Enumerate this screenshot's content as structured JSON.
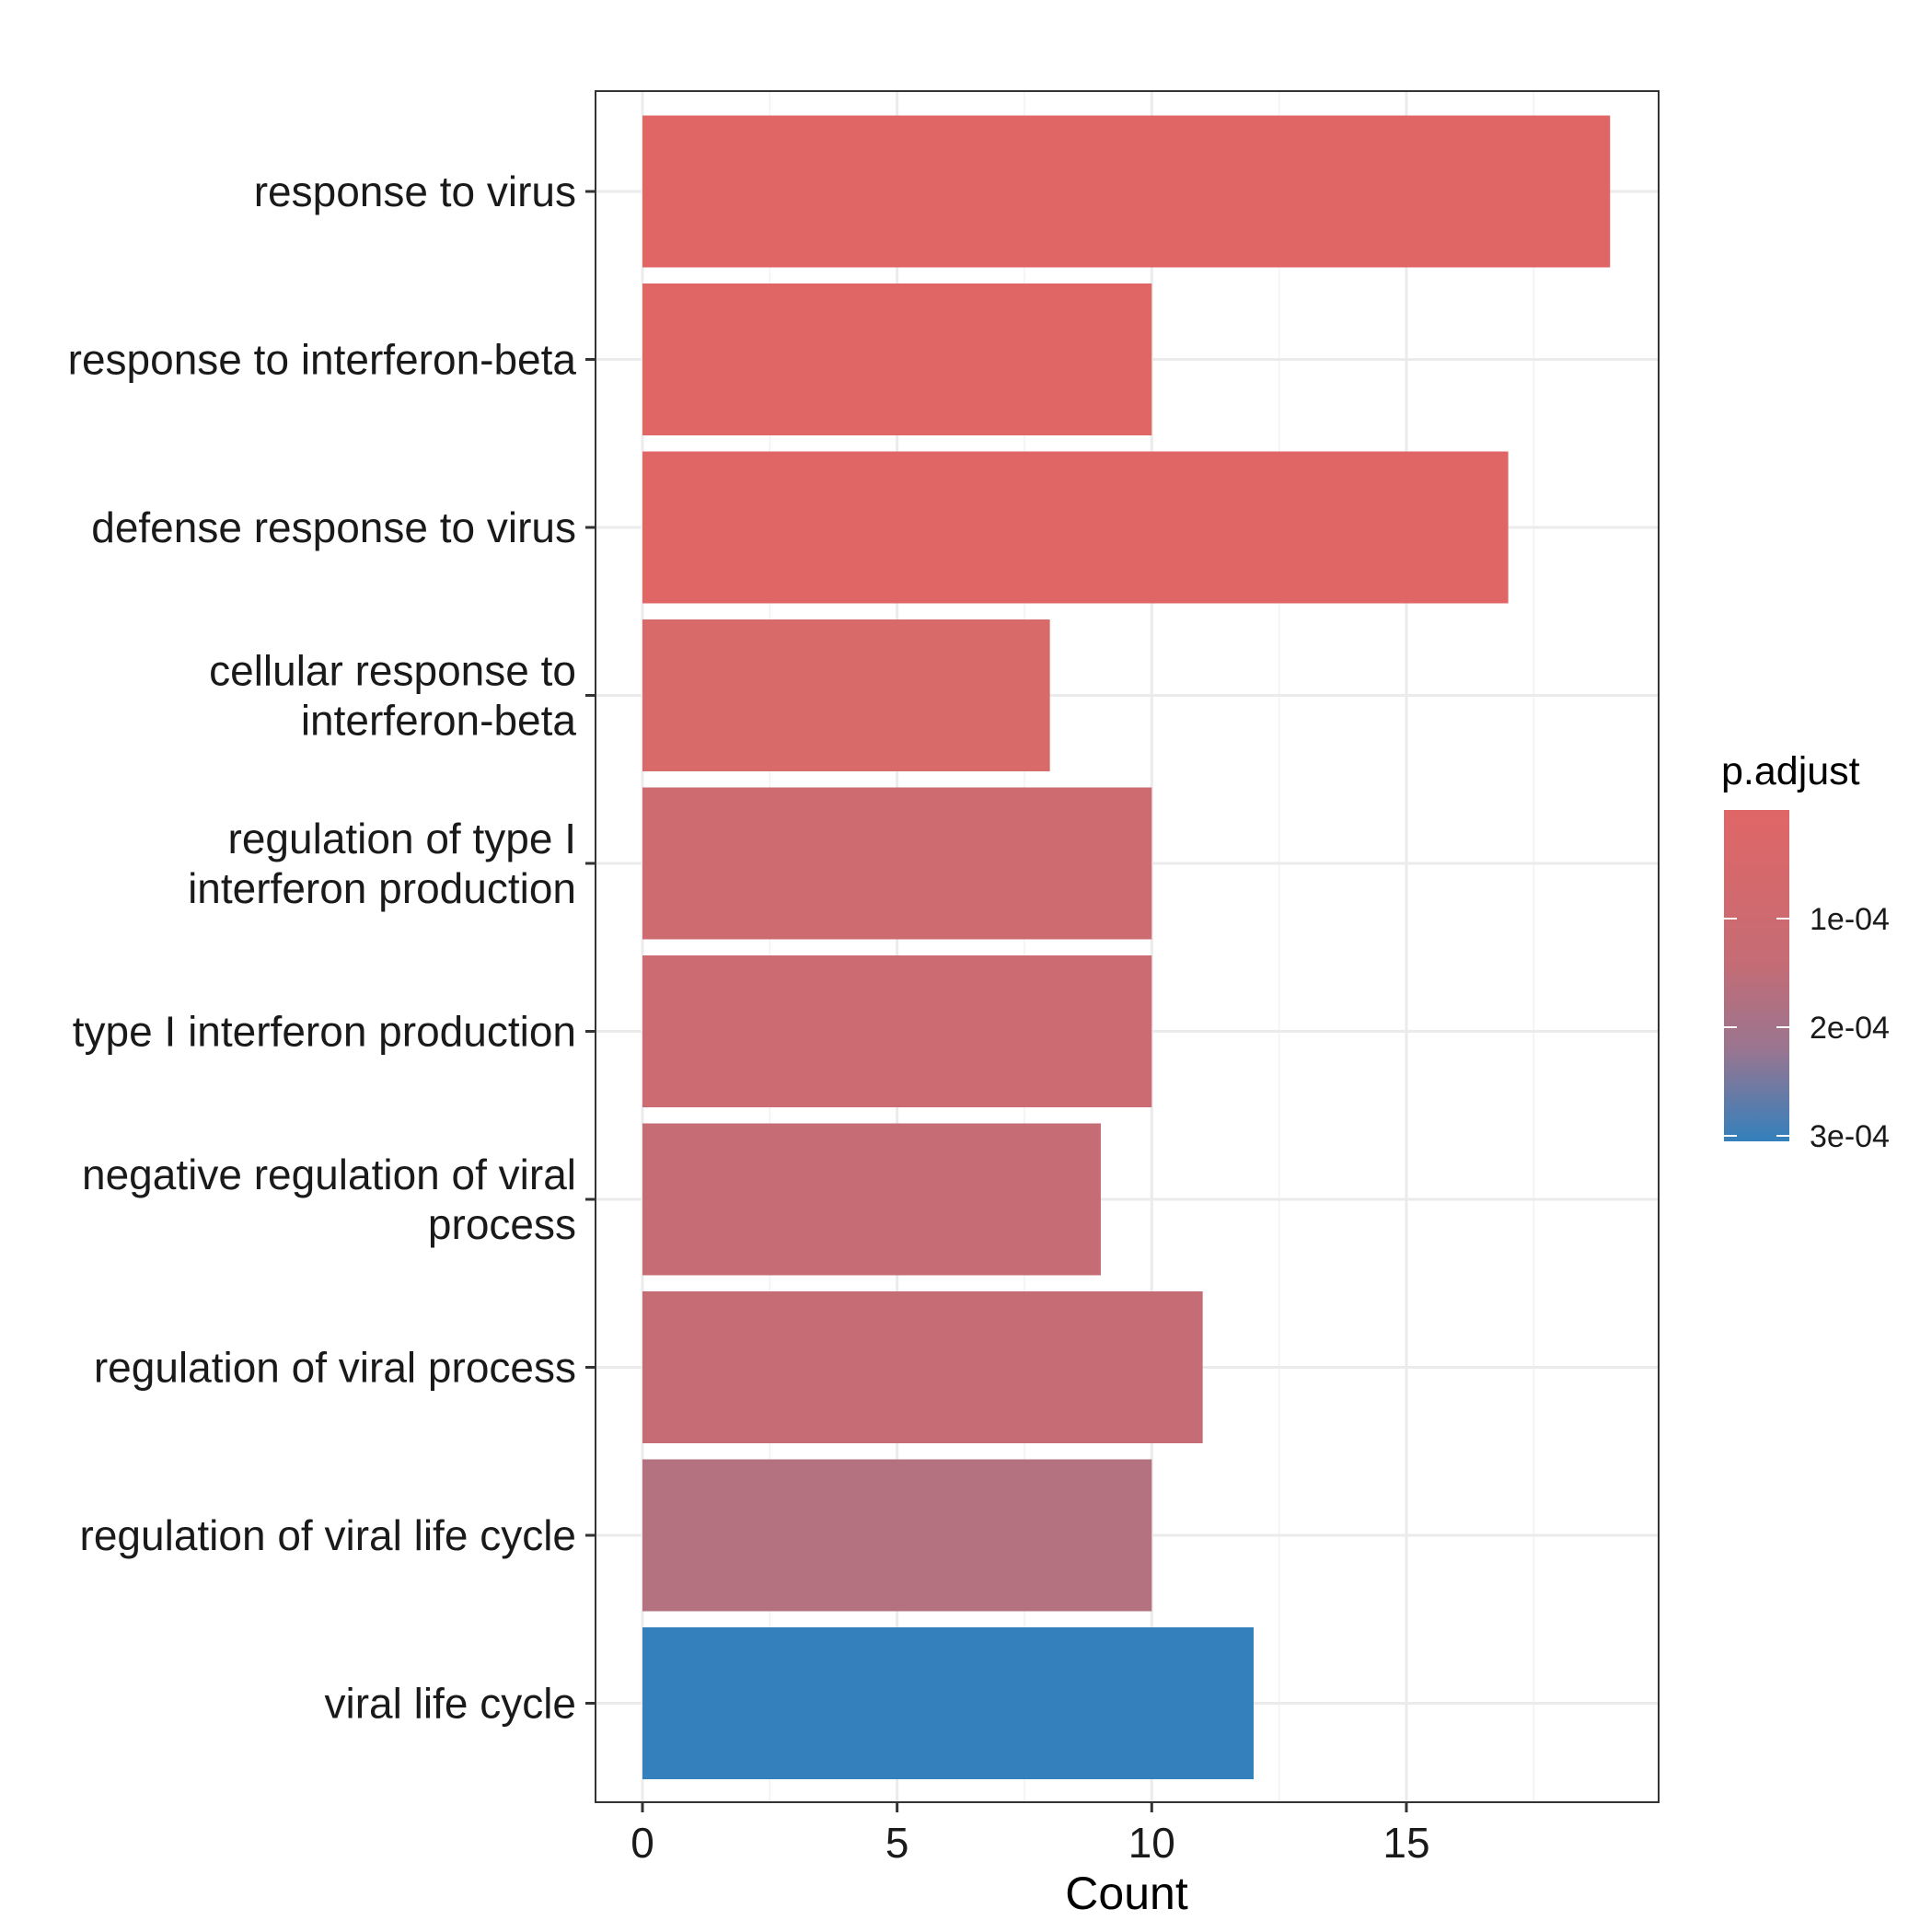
{
  "chart_data": {
    "type": "bar",
    "orientation": "horizontal",
    "xlabel": "Count",
    "ylabel": "",
    "xlim": [
      0,
      19
    ],
    "x_ticks": [
      0,
      5,
      10,
      15
    ],
    "grid": true,
    "categories": [
      [
        "response to virus"
      ],
      [
        "response to interferon-beta"
      ],
      [
        "defense response to virus"
      ],
      [
        "cellular response to",
        "interferon-beta"
      ],
      [
        "regulation of type I",
        "interferon production"
      ],
      [
        "type I interferon production"
      ],
      [
        "negative regulation of viral",
        "process"
      ],
      [
        "regulation of viral process"
      ],
      [
        "regulation of viral life cycle"
      ],
      [
        "viral life cycle"
      ]
    ],
    "values": [
      19,
      10,
      17,
      8,
      10,
      10,
      9,
      11,
      10,
      12
    ],
    "colors": [
      "#e06666",
      "#e06666",
      "#e06666",
      "#d86a6a",
      "#cd6b70",
      "#cc6b71",
      "#c66c74",
      "#c66c75",
      "#b47180",
      "#3380bc"
    ],
    "legend": {
      "title": "p.adjust",
      "placement": "right",
      "color_low": "#e06666",
      "color_high": "#3380bc",
      "ticks": [
        "1e-04",
        "2e-04",
        "3e-04"
      ]
    }
  }
}
